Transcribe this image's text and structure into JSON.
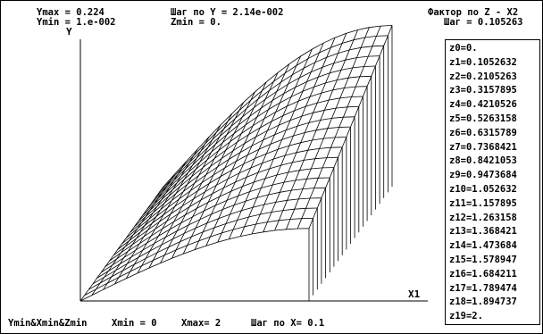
{
  "header": {
    "ymax": "Ymax = 0.224",
    "ymin": "Ymin = 1.e-002",
    "y_step": "Шаг по Y = 2.14e-002",
    "zmin": "Zmin = 0.",
    "factor": "Фактор по Z - X2",
    "z_step": "Шаг = 0.105263"
  },
  "axes": {
    "y_label": "Y",
    "x_label": "X1"
  },
  "footer": {
    "origin": "Ymin&Xmin&Zmin",
    "xmin": "Xmin = 0",
    "xmax": "Xmax= 2",
    "x_step": "Шаг по X= 0.1"
  },
  "chart_data": {
    "type": "surface",
    "xlabel": "X1",
    "ylabel": "Y",
    "z_factor": "X2",
    "x_range": [
      0,
      2
    ],
    "x_step": 0.1,
    "y_range": [
      0.01,
      0.224
    ],
    "y_step": 0.0214,
    "z_range": [
      0,
      2
    ],
    "z_step": 0.105263,
    "z_levels": [
      "z0=0.",
      "z1=0.1052632",
      "z2=0.2105263",
      "z3=0.3157895",
      "z4=0.4210526",
      "z5=0.5263158",
      "z6=0.6315789",
      "z7=0.7368421",
      "z8=0.8421053",
      "z9=0.9473684",
      "z10=1.052632",
      "z11=1.157895",
      "z12=1.263158",
      "z13=1.368421",
      "z14=1.473684",
      "z15=1.578947",
      "z16=1.684211",
      "z17=1.789474",
      "z18=1.894737",
      "z19=2."
    ]
  }
}
